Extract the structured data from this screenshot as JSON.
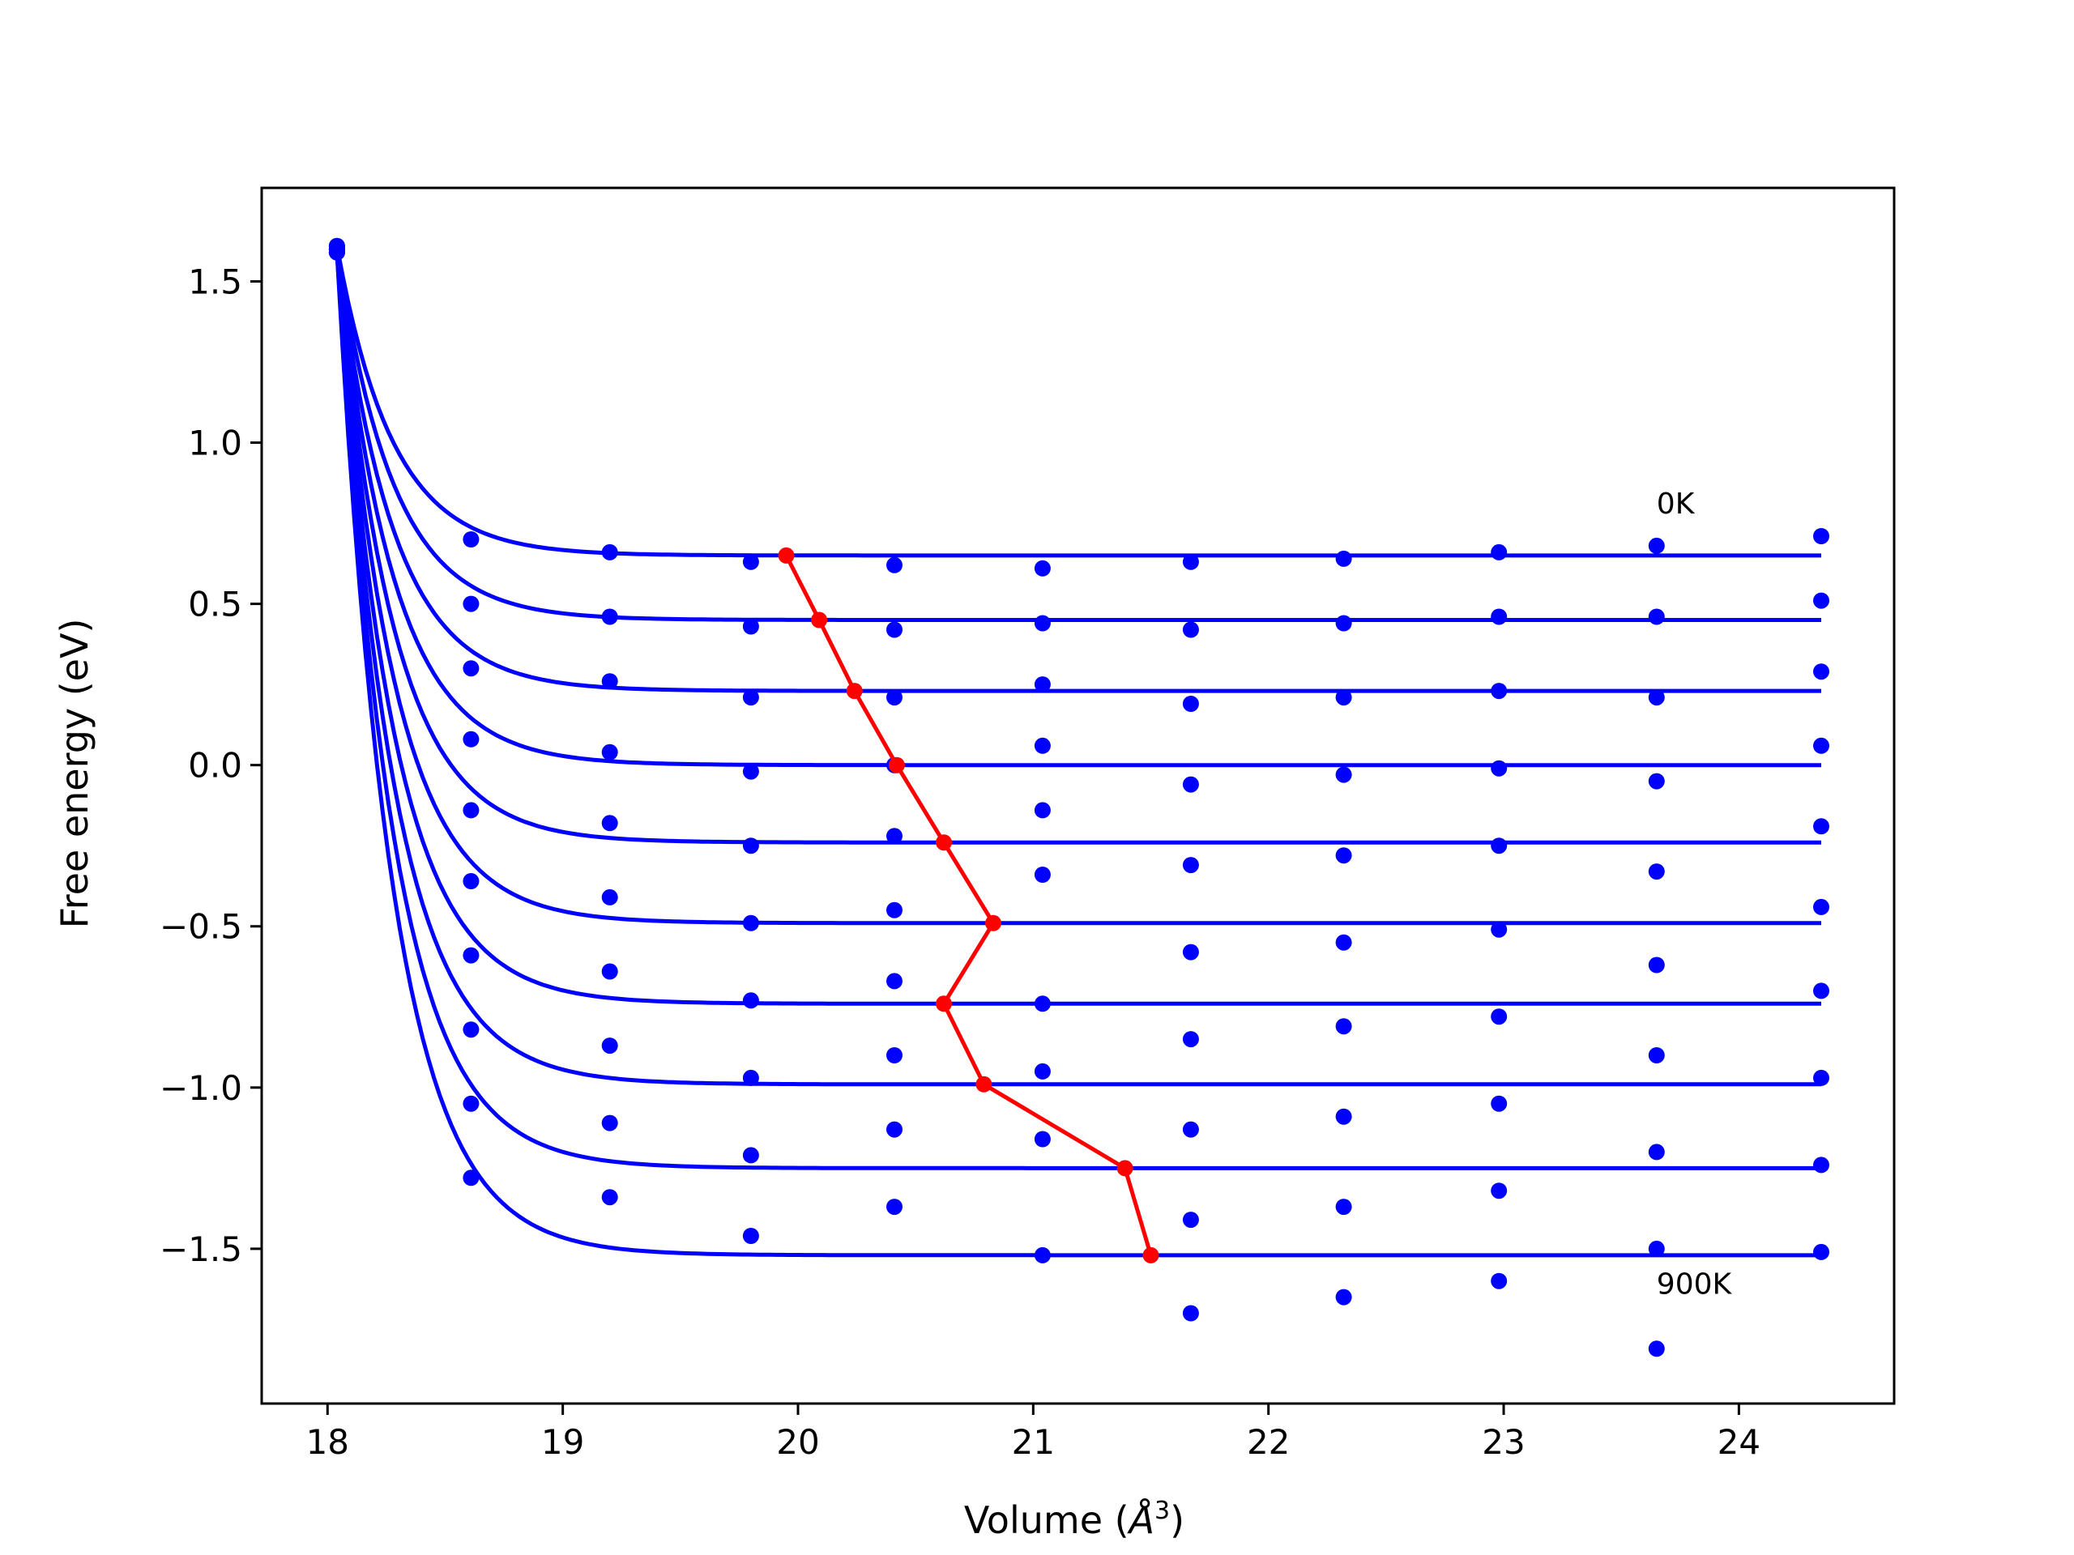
{
  "chart_data": {
    "type": "scatter",
    "xlabel_prefix": "Volume (",
    "xlabel_unit": "Å",
    "xlabel_exp": "3",
    "xlabel_suffix": ")",
    "ylabel": "Free energy (eV)",
    "xlim": [
      17.72,
      24.66
    ],
    "ylim": [
      -1.98,
      1.79
    ],
    "xticks": [
      18,
      19,
      20,
      21,
      22,
      23,
      24
    ],
    "xtick_labels": [
      "18",
      "19",
      "20",
      "21",
      "22",
      "23",
      "24"
    ],
    "yticks": [
      1.5,
      1.0,
      0.5,
      0.0,
      -0.5,
      -1.0,
      -1.5
    ],
    "ytick_labels": [
      "1.5",
      "1.0",
      "0.5",
      "0.0",
      "−0.5",
      "−1.0",
      "−1.5"
    ],
    "grid": false,
    "colors": {
      "fit": "#0000ff",
      "points": "#0000ff",
      "minimum": "#ff0000"
    },
    "volumes": [
      18.04,
      18.61,
      19.2,
      19.8,
      20.41,
      21.04,
      21.67,
      22.32,
      22.98,
      23.65,
      24.35
    ],
    "isotherms": [
      {
        "label": "0K",
        "values": [
          1.61,
          0.7,
          0.66,
          0.63,
          0.62,
          0.61,
          0.63,
          0.64,
          0.66,
          0.68,
          0.71
        ],
        "asymptote": 0.65
      },
      {
        "values": [
          1.61,
          0.5,
          0.46,
          0.43,
          0.42,
          0.44,
          0.42,
          0.44,
          0.46,
          0.46,
          0.51
        ],
        "asymptote": 0.45
      },
      {
        "values": [
          1.6,
          0.3,
          0.26,
          0.21,
          0.21,
          0.25,
          0.19,
          0.21,
          0.23,
          0.21,
          0.29
        ],
        "asymptote": 0.23
      },
      {
        "values": [
          1.6,
          0.08,
          0.04,
          -0.02,
          0.0,
          0.06,
          -0.06,
          -0.03,
          -0.01,
          -0.05,
          0.06
        ],
        "asymptote": 0.0
      },
      {
        "values": [
          1.6,
          -0.14,
          -0.18,
          -0.25,
          -0.22,
          -0.14,
          -0.31,
          -0.28,
          -0.25,
          -0.33,
          -0.19
        ],
        "asymptote": -0.24
      },
      {
        "values": [
          1.6,
          -0.36,
          -0.41,
          -0.49,
          -0.45,
          -0.34,
          -0.58,
          -0.55,
          -0.51,
          -0.62,
          -0.44
        ],
        "asymptote": -0.49
      },
      {
        "values": [
          1.59,
          -0.59,
          -0.64,
          -0.73,
          -0.67,
          -0.74,
          -0.85,
          -0.81,
          -0.78,
          -0.9,
          -0.7
        ],
        "asymptote": -0.74
      },
      {
        "values": [
          1.59,
          -0.82,
          -0.87,
          -0.97,
          -0.9,
          -0.95,
          -1.13,
          -1.09,
          -1.05,
          -1.2,
          -0.97
        ],
        "asymptote": -0.99
      },
      {
        "values": [
          1.59,
          -1.05,
          -1.11,
          -1.21,
          -1.13,
          -1.16,
          -1.41,
          -1.37,
          -1.32,
          -1.5,
          -1.24
        ],
        "asymptote": -1.25
      },
      {
        "label": "900K",
        "values": [
          1.59,
          -1.28,
          -1.34,
          -1.46,
          -1.37,
          -1.52,
          -1.7,
          -1.65,
          -1.6,
          -1.81,
          -1.51
        ],
        "asymptote": -1.52
      }
    ],
    "minimum_path": {
      "x": [
        19.95,
        20.09,
        20.24,
        20.42,
        20.62,
        20.83,
        20.62,
        20.79,
        21.39,
        21.5
      ],
      "y": [
        0.65,
        0.45,
        0.23,
        0.0,
        -0.24,
        -0.49,
        -0.74,
        -0.99,
        -1.25,
        -1.52
      ]
    },
    "annotations": [
      {
        "text": "0K",
        "x": 23.65,
        "y": 0.78
      },
      {
        "text": "900K",
        "x": 23.65,
        "y": -1.64
      }
    ]
  }
}
